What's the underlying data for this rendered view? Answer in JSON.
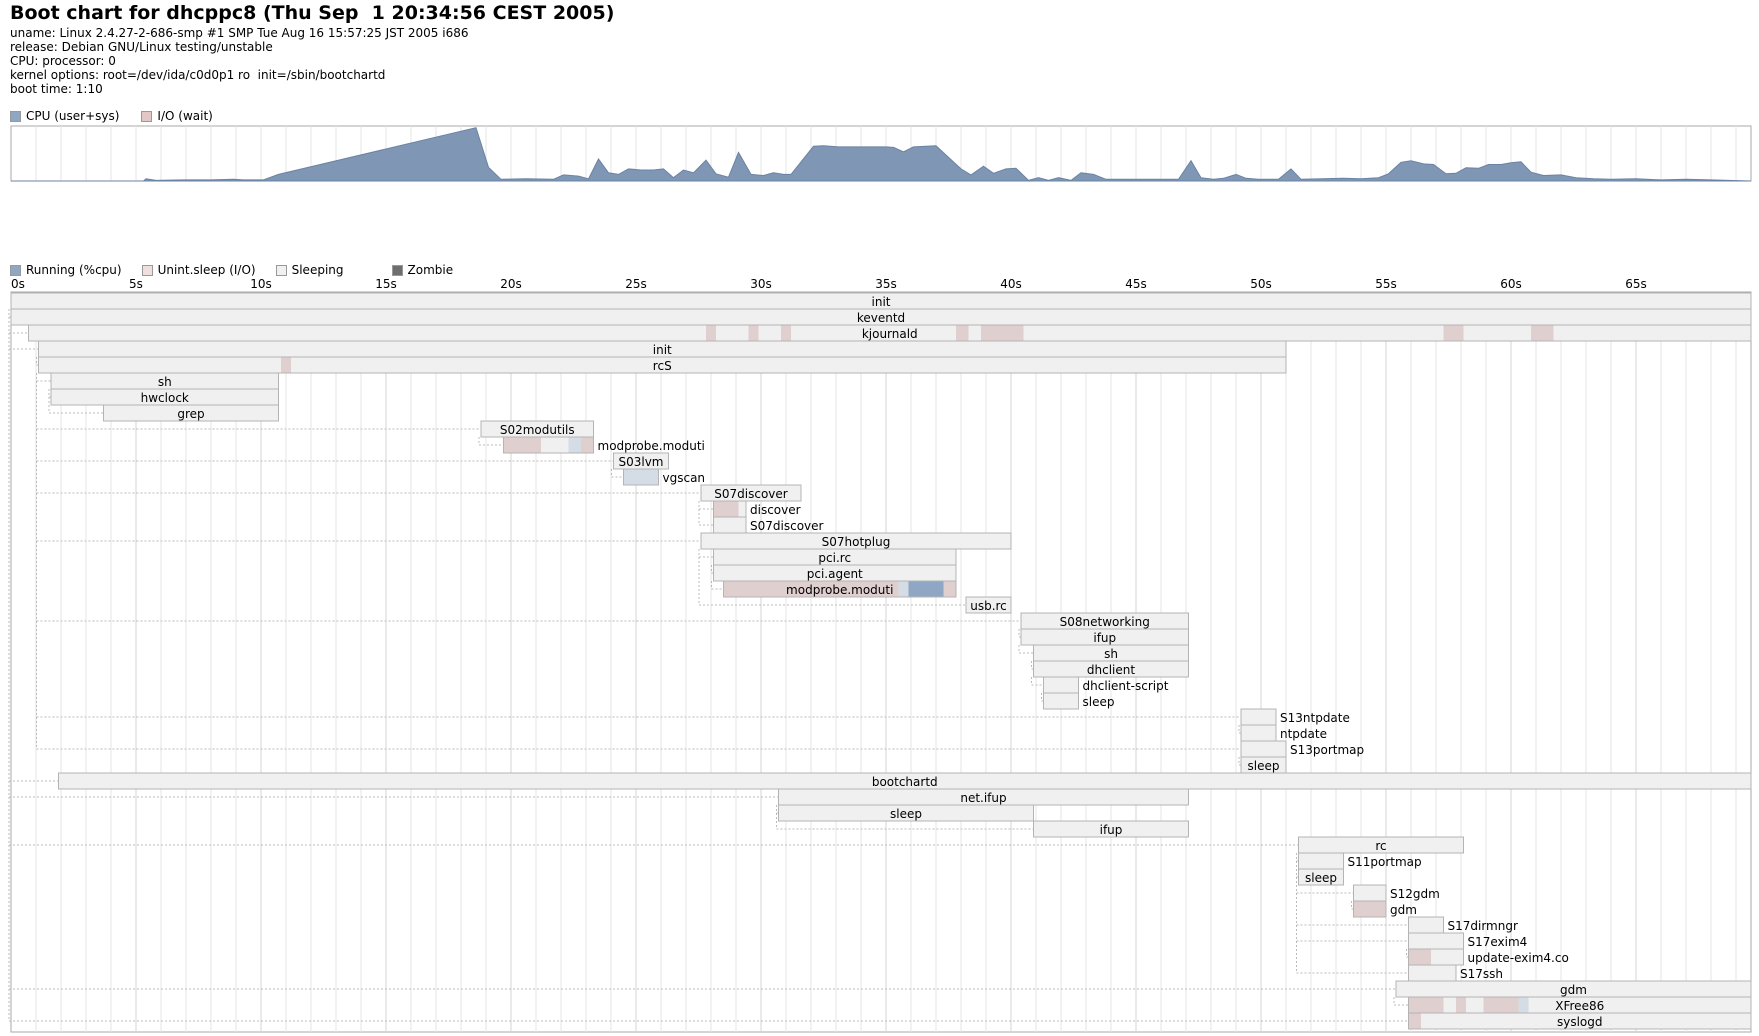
{
  "header": {
    "title": "Boot chart for dhcppc8 (Thu Sep  1 20:34:56 CEST 2005)",
    "lines": [
      "uname: Linux 2.4.27-2-686-smp #1 SMP Tue Aug 16 15:57:25 JST 2005 i686",
      "release: Debian GNU/Linux testing/unstable",
      "CPU: processor: 0",
      "kernel options: root=/dev/ida/c0d0p1 ro  init=/sbin/bootchartd",
      "boot time: 1:10"
    ]
  },
  "colors": {
    "cpu": "#7f97b4",
    "cpu_stroke": "#6b83a3",
    "io": "#e0cfcf",
    "sleeping": "#f0f0f0",
    "border": "#b4b4b4",
    "running": "#8fa6c4",
    "running_light": "#d4dce5",
    "zombie": "#6e6e6e",
    "grid": "#dddddd"
  },
  "cpu_legend": [
    {
      "label": "CPU (user+sys)",
      "color": "#8fa6c4"
    },
    {
      "label": "I/O (wait)",
      "color": "#e3c7c7"
    }
  ],
  "proc_legend": [
    {
      "label": "Running (%cpu)",
      "color": "#8fa6c4"
    },
    {
      "label": "Unint.sleep (I/O)",
      "color": "#f0dfdf"
    },
    {
      "label": "Sleeping",
      "color": "#f0f0f0"
    },
    {
      "label": "Zombie",
      "color": "#6e6e6e"
    }
  ],
  "chart_data": [
    {
      "type": "area",
      "series": [
        {
          "name": "CPU (user+sys)",
          "unit": "%",
          "points": [
            [
              0,
              0
            ],
            [
              5.3,
              0
            ],
            [
              5.4,
              4
            ],
            [
              5.8,
              1
            ],
            [
              6.9,
              2
            ],
            [
              8.0,
              2
            ],
            [
              8.9,
              3
            ],
            [
              9.3,
              2
            ],
            [
              10.1,
              2
            ],
            [
              10.7,
              12
            ],
            [
              18.6,
              97
            ],
            [
              19.1,
              25
            ],
            [
              19.6,
              3
            ],
            [
              20.6,
              4
            ],
            [
              21.7,
              3
            ],
            [
              22.1,
              11
            ],
            [
              22.7,
              9
            ],
            [
              23.1,
              4
            ],
            [
              23.5,
              40
            ],
            [
              23.9,
              15
            ],
            [
              24.3,
              12
            ],
            [
              24.7,
              22
            ],
            [
              25.2,
              20
            ],
            [
              25.7,
              20
            ],
            [
              26.1,
              22
            ],
            [
              26.5,
              6
            ],
            [
              26.9,
              20
            ],
            [
              27.3,
              15
            ],
            [
              27.8,
              38
            ],
            [
              28.2,
              13
            ],
            [
              28.7,
              7
            ],
            [
              29.1,
              52
            ],
            [
              29.6,
              12
            ],
            [
              30.1,
              10
            ],
            [
              30.5,
              15
            ],
            [
              30.9,
              12
            ],
            [
              31.2,
              12
            ],
            [
              32.1,
              63
            ],
            [
              32.5,
              64
            ],
            [
              33.1,
              62
            ],
            [
              35.0,
              62
            ],
            [
              35.3,
              61
            ],
            [
              35.7,
              53
            ],
            [
              36.1,
              62
            ],
            [
              37.0,
              64
            ],
            [
              38.0,
              22
            ],
            [
              38.4,
              11
            ],
            [
              38.9,
              27
            ],
            [
              39.3,
              14
            ],
            [
              39.8,
              22
            ],
            [
              40.2,
              23
            ],
            [
              40.7,
              1
            ],
            [
              41.1,
              6
            ],
            [
              41.5,
              1
            ],
            [
              41.9,
              6
            ],
            [
              42.4,
              1
            ],
            [
              42.8,
              15
            ],
            [
              43.3,
              12
            ],
            [
              43.8,
              3
            ],
            [
              44.8,
              3
            ],
            [
              46.0,
              3
            ],
            [
              46.7,
              3
            ],
            [
              47.2,
              37
            ],
            [
              47.6,
              6
            ],
            [
              48.1,
              3
            ],
            [
              48.5,
              5
            ],
            [
              49.0,
              12
            ],
            [
              49.4,
              5
            ],
            [
              49.9,
              3
            ],
            [
              50.7,
              3
            ],
            [
              51.2,
              22
            ],
            [
              51.6,
              3
            ],
            [
              53.3,
              5
            ],
            [
              54.0,
              4
            ],
            [
              54.7,
              6
            ],
            [
              55.1,
              13
            ],
            [
              55.6,
              34
            ],
            [
              56.0,
              37
            ],
            [
              56.5,
              31
            ],
            [
              56.9,
              30
            ],
            [
              57.4,
              13
            ],
            [
              57.8,
              14
            ],
            [
              58.2,
              24
            ],
            [
              58.7,
              23
            ],
            [
              59.1,
              30
            ],
            [
              59.6,
              30
            ],
            [
              60.0,
              33
            ],
            [
              60.4,
              35
            ],
            [
              60.8,
              16
            ],
            [
              61.3,
              10
            ],
            [
              62.0,
              11
            ],
            [
              62.6,
              6
            ],
            [
              63.3,
              4
            ],
            [
              64.0,
              3
            ],
            [
              65.0,
              4
            ],
            [
              66.0,
              2
            ],
            [
              67.0,
              3
            ],
            [
              68.0,
              2
            ],
            [
              69.6,
              0
            ]
          ]
        }
      ],
      "xlim": [
        0,
        69.6
      ],
      "ylim": [
        0,
        100
      ],
      "grid": true,
      "legend": "top-left"
    },
    {
      "type": "gantt",
      "xlim": [
        0,
        69.6
      ],
      "ticks": [
        "0s",
        "5s",
        "10s",
        "15s",
        "20s",
        "25s",
        "30s",
        "35s",
        "40s",
        "45s",
        "50s",
        "55s",
        "60s",
        "65s"
      ],
      "processes": [
        {
          "name": "init",
          "start": 0,
          "end": 69.6,
          "parent": null
        },
        {
          "name": "keventd",
          "start": 0,
          "end": 69.6,
          "parent": 0
        },
        {
          "name": "kjournald",
          "start": 0.7,
          "end": 69.6,
          "parent": 0,
          "states": [
            [
              27.8,
              28.2,
              "io"
            ],
            [
              29.5,
              29.9,
              "io"
            ],
            [
              30.8,
              31.2,
              "io"
            ],
            [
              37.8,
              38.3,
              "io"
            ],
            [
              38.8,
              40.5,
              "io"
            ],
            [
              57.3,
              58.1,
              "io"
            ],
            [
              60.8,
              61.7,
              "io"
            ]
          ]
        },
        {
          "name": "init",
          "start": 1.1,
          "end": 51.0,
          "parent": 0
        },
        {
          "name": "rcS",
          "start": 1.1,
          "end": 51.0,
          "parent": 3,
          "states": [
            [
              10.8,
              11.2,
              "io"
            ]
          ]
        },
        {
          "name": "sh",
          "start": 1.6,
          "end": 10.7,
          "parent": 4
        },
        {
          "name": "hwclock",
          "start": 1.6,
          "end": 10.7,
          "parent": 5
        },
        {
          "name": "grep",
          "start": 3.7,
          "end": 10.7,
          "parent": 5
        },
        {
          "name": "S02modutils",
          "start": 18.8,
          "end": 23.3,
          "parent": 4
        },
        {
          "name": "modprobe.moduti",
          "start": 19.7,
          "end": 23.3,
          "parent": 8,
          "states": [
            [
              19.7,
              21.2,
              "io"
            ],
            [
              22.3,
              22.8,
              "run_light"
            ],
            [
              22.8,
              23.3,
              "io"
            ]
          ]
        },
        {
          "name": "S03lvm",
          "start": 24.1,
          "end": 26.3,
          "parent": 4
        },
        {
          "name": "vgscan",
          "start": 24.5,
          "end": 25.9,
          "parent": 10,
          "states": [
            [
              24.5,
              25.1,
              "run_light"
            ],
            [
              25.1,
              25.9,
              "run_light"
            ]
          ]
        },
        {
          "name": "S07discover",
          "start": 27.6,
          "end": 31.6,
          "parent": 4
        },
        {
          "name": "discover",
          "start": 28.1,
          "end": 29.4,
          "parent": 12,
          "states": [
            [
              28.1,
              29.1,
              "io"
            ]
          ]
        },
        {
          "name": "S07discover",
          "start": 28.1,
          "end": 29.4,
          "parent": 12
        },
        {
          "name": "S07hotplug",
          "start": 27.6,
          "end": 40.0,
          "parent": 4
        },
        {
          "name": "pci.rc",
          "start": 28.1,
          "end": 37.8,
          "parent": 15
        },
        {
          "name": "pci.agent",
          "start": 28.1,
          "end": 37.8,
          "parent": 16
        },
        {
          "name": "modprobe.moduti",
          "start": 28.5,
          "end": 37.8,
          "parent": 17,
          "states": [
            [
              28.5,
              35.5,
              "io"
            ],
            [
              35.5,
              35.9,
              "run_light"
            ],
            [
              35.9,
              36.4,
              "run"
            ],
            [
              36.4,
              37.3,
              "run"
            ],
            [
              37.3,
              37.8,
              "io"
            ]
          ]
        },
        {
          "name": "usb.rc",
          "start": 38.2,
          "end": 40.0,
          "parent": 15
        },
        {
          "name": "S08networking",
          "start": 40.4,
          "end": 47.1,
          "parent": 4
        },
        {
          "name": "ifup",
          "start": 40.4,
          "end": 47.1,
          "parent": 20
        },
        {
          "name": "sh",
          "start": 40.9,
          "end": 47.1,
          "parent": 21
        },
        {
          "name": "dhclient",
          "start": 40.9,
          "end": 47.1,
          "parent": 22
        },
        {
          "name": "dhclient-script",
          "start": 41.3,
          "end": 42.7,
          "parent": 23
        },
        {
          "name": "sleep",
          "start": 41.3,
          "end": 42.7,
          "parent": 24
        },
        {
          "name": "S13ntpdate",
          "start": 49.2,
          "end": 50.6,
          "parent": 4
        },
        {
          "name": "ntpdate",
          "start": 49.2,
          "end": 50.6,
          "parent": 26
        },
        {
          "name": "S13portmap",
          "start": 49.2,
          "end": 51.0,
          "parent": 4
        },
        {
          "name": "sleep",
          "start": 49.2,
          "end": 51.0,
          "parent": 28
        },
        {
          "name": "bootchartd",
          "start": 1.9,
          "end": 69.6,
          "parent": 0
        },
        {
          "name": "net.ifup",
          "start": 30.7,
          "end": 47.1,
          "parent": 0
        },
        {
          "name": "sleep",
          "start": 30.7,
          "end": 40.9,
          "parent": 31
        },
        {
          "name": "ifup",
          "start": 40.9,
          "end": 47.1,
          "parent": 31
        },
        {
          "name": "rc",
          "start": 51.5,
          "end": 58.1,
          "parent": 0
        },
        {
          "name": "S11portmap",
          "start": 51.5,
          "end": 53.3,
          "parent": 34
        },
        {
          "name": "sleep",
          "start": 51.5,
          "end": 53.3,
          "parent": 35
        },
        {
          "name": "S12gdm",
          "start": 53.7,
          "end": 55.0,
          "parent": 34
        },
        {
          "name": "gdm",
          "start": 53.7,
          "end": 55.0,
          "parent": 37,
          "states": [
            [
              53.7,
              55.0,
              "io"
            ]
          ]
        },
        {
          "name": "S17dirmngr",
          "start": 55.9,
          "end": 57.3,
          "parent": 34
        },
        {
          "name": "S17exim4",
          "start": 55.9,
          "end": 58.1,
          "parent": 34
        },
        {
          "name": "update-exim4.co",
          "start": 55.9,
          "end": 58.1,
          "parent": 40,
          "states": [
            [
              55.9,
              56.8,
              "io"
            ]
          ]
        },
        {
          "name": "S17ssh",
          "start": 55.9,
          "end": 57.8,
          "parent": 34
        },
        {
          "name": "gdm",
          "start": 55.4,
          "end": 69.6,
          "parent": 0
        },
        {
          "name": "XFree86",
          "start": 55.9,
          "end": 69.6,
          "parent": 43,
          "states": [
            [
              55.9,
              57.3,
              "io"
            ],
            [
              57.8,
              58.2,
              "io"
            ],
            [
              58.9,
              60.3,
              "io"
            ],
            [
              60.3,
              60.7,
              "run_light"
            ]
          ]
        },
        {
          "name": "syslogd",
          "start": 55.9,
          "end": 69.6,
          "parent": 0,
          "states": [
            [
              55.9,
              56.4,
              "io"
            ]
          ]
        }
      ]
    }
  ]
}
